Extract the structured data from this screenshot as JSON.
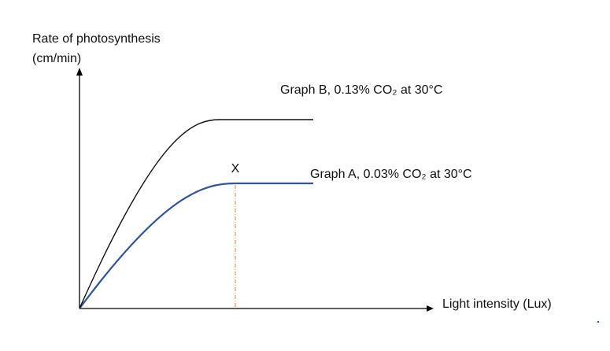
{
  "chart_data": {
    "type": "line",
    "title": "",
    "ylabel_line1": "Rate of photosynthesis",
    "ylabel_line2": "(cm/min)",
    "xlabel": "Light intensity (Lux)",
    "grid": false,
    "series": [
      {
        "id": "A",
        "name": "Graph A, 0.03% CO₂ at 30°C",
        "color": "#2f5597",
        "points": [
          [
            0,
            0
          ],
          [
            1,
            0.53
          ],
          [
            1.5,
            0.53
          ]
        ]
      },
      {
        "id": "B",
        "name": "Graph B, 0.13% CO₂ at 30°C",
        "color": "#111111",
        "points": [
          [
            0,
            0
          ],
          [
            0.9,
            0.8
          ],
          [
            1.5,
            0.8
          ]
        ]
      }
    ],
    "annotations": [
      {
        "label": "X",
        "x": 1.0,
        "y": 0.53,
        "line_color": "#ed7d31"
      }
    ]
  },
  "colors": {
    "axis": "#000000",
    "series_a": "#2f5597",
    "series_b": "#111111",
    "marker_line": "#ed7d31"
  }
}
